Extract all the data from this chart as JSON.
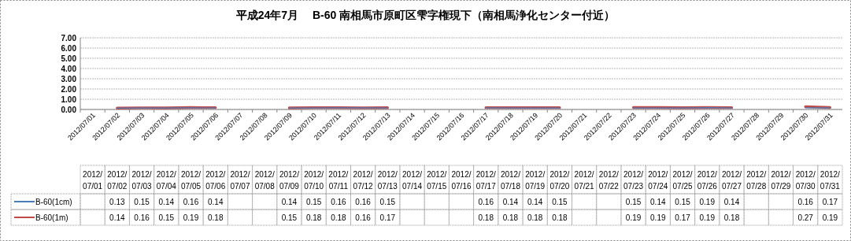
{
  "chart_data": {
    "type": "line",
    "title": "平成24年7月　 B-60 南相馬市原町区雫字権現下（南相馬浄化センター付近）",
    "categories": [
      "2012/07/01",
      "2012/07/02",
      "2012/07/03",
      "2012/07/04",
      "2012/07/05",
      "2012/07/06",
      "2012/07/07",
      "2012/07/08",
      "2012/07/09",
      "2012/07/10",
      "2012/07/11",
      "2012/07/12",
      "2012/07/13",
      "2012/07/14",
      "2012/07/15",
      "2012/07/16",
      "2012/07/17",
      "2012/07/18",
      "2012/07/19",
      "2012/07/20",
      "2012/07/21",
      "2012/07/22",
      "2012/07/23",
      "2012/07/24",
      "2012/07/25",
      "2012/07/26",
      "2012/07/27",
      "2012/07/28",
      "2012/07/29",
      "2012/07/30",
      "2012/07/31"
    ],
    "series": [
      {
        "name": "B-60(1cm)",
        "color": "#4a7ebb",
        "values": [
          null,
          0.13,
          0.15,
          0.14,
          0.16,
          0.14,
          null,
          null,
          0.14,
          0.15,
          0.16,
          0.16,
          0.15,
          null,
          null,
          null,
          0.16,
          0.14,
          0.14,
          0.15,
          null,
          null,
          0.15,
          0.14,
          0.15,
          0.19,
          0.14,
          null,
          null,
          0.16,
          0.17
        ]
      },
      {
        "name": "B-60(1m)",
        "color": "#be4b48",
        "values": [
          null,
          0.14,
          0.16,
          0.15,
          0.19,
          0.18,
          null,
          null,
          0.15,
          0.18,
          0.18,
          0.16,
          0.17,
          null,
          null,
          null,
          0.18,
          0.18,
          0.18,
          0.18,
          null,
          null,
          0.19,
          0.19,
          0.17,
          0.19,
          0.18,
          null,
          null,
          0.27,
          0.19
        ]
      }
    ],
    "ylim": [
      0,
      7
    ],
    "yticks": [
      {
        "value": 0,
        "label": "0.00"
      },
      {
        "value": 1,
        "label": "1.00"
      },
      {
        "value": 2,
        "label": "2.00"
      },
      {
        "value": 3,
        "label": "3.00"
      },
      {
        "value": 4,
        "label": "4.00"
      },
      {
        "value": 5,
        "label": "5.00"
      },
      {
        "value": 6,
        "label": "6.00"
      },
      {
        "value": 7,
        "label": "7.00"
      }
    ],
    "grid": "y",
    "legend": "bottom",
    "marker": "none",
    "line_style": "solid",
    "data_labels": true
  }
}
